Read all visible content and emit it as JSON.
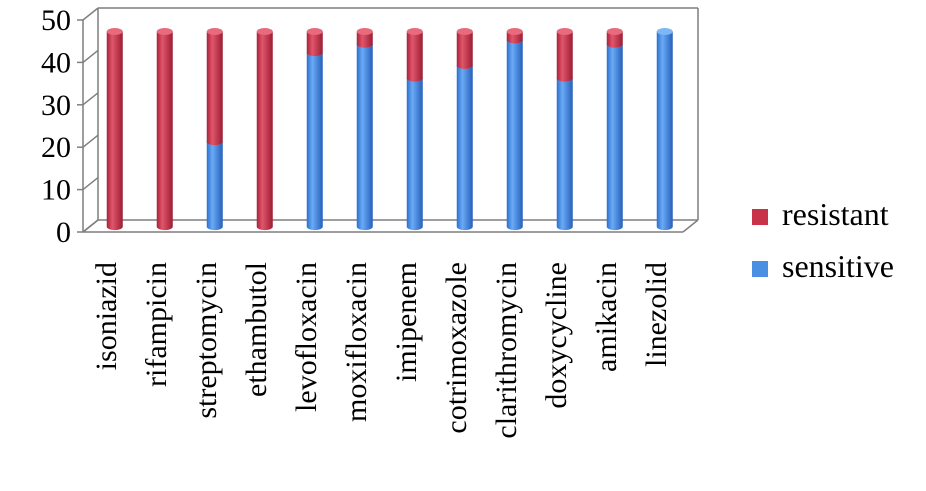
{
  "chart_data": {
    "type": "bar",
    "stacked": true,
    "style": "3d-cylinder",
    "categories": [
      "isoniazid",
      "rifampicin",
      "streptomycin",
      "ethambutol",
      "levofloxacin",
      "moxifloxacin",
      "imipenem",
      "cotrimoxazole",
      "clarithromycin",
      "doxycycline",
      "amikacin",
      "linezolid"
    ],
    "series": [
      {
        "name": "sensitive",
        "color": "#4a90e2",
        "values": [
          0,
          0,
          20,
          0,
          41,
          43,
          35,
          38,
          44,
          35,
          43,
          46
        ]
      },
      {
        "name": "resistant",
        "color": "#c8334a",
        "values": [
          46,
          46,
          26,
          46,
          5,
          3,
          11,
          8,
          2,
          11,
          3,
          0
        ]
      }
    ],
    "ylim": [
      0,
      50
    ],
    "yticks": [
      "0",
      "10",
      "20",
      "30",
      "40",
      "50"
    ],
    "legend_position": "right",
    "grid": false
  }
}
